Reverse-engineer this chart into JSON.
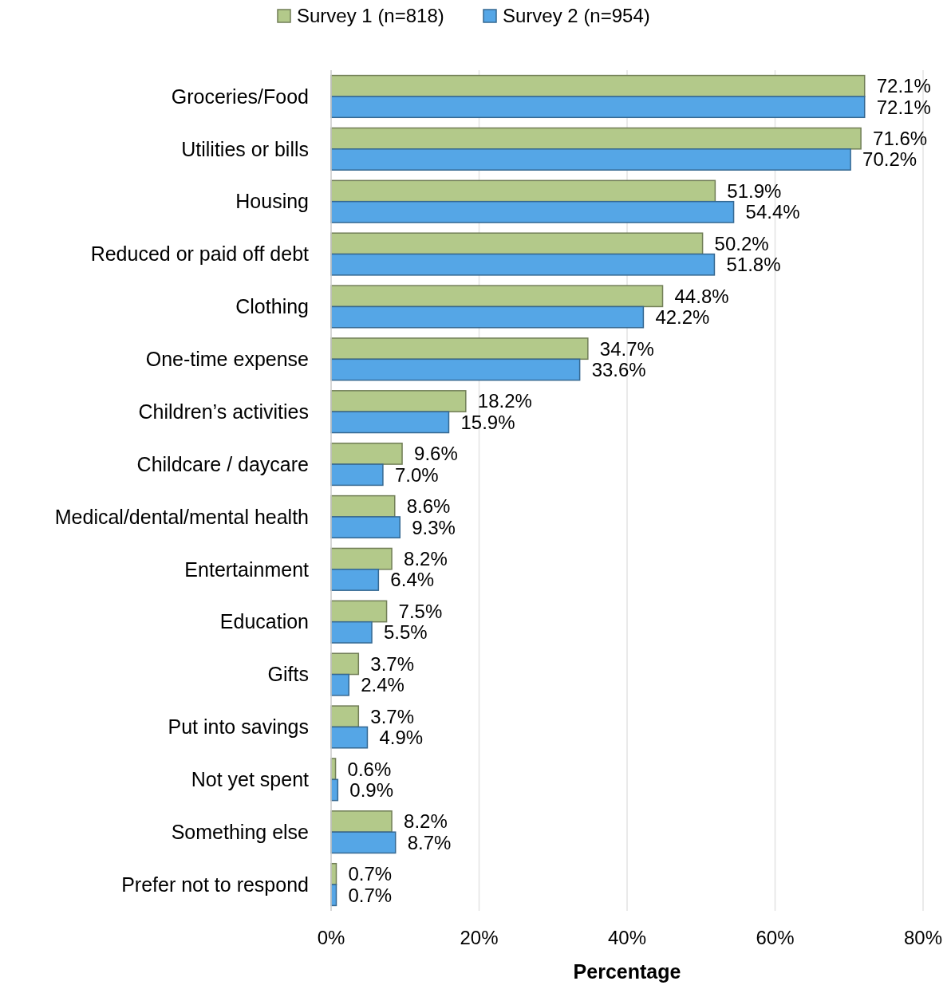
{
  "chart_data": {
    "type": "bar",
    "orientation": "horizontal",
    "xlabel": "Percentage",
    "categories": [
      "Groceries/Food",
      "Utilities or bills",
      "Housing",
      "Reduced or paid off debt",
      "Clothing",
      "One-time expense",
      "Children’s activities",
      "Childcare / daycare",
      "Medical/dental/mental health",
      "Entertainment",
      "Education",
      "Gifts",
      "Put into savings",
      "Not yet spent",
      "Something else",
      "Prefer not to respond"
    ],
    "series": [
      {
        "name": "Survey 1 (n=818)",
        "color": "#b3c98a",
        "values": [
          72.1,
          71.6,
          51.9,
          50.2,
          44.8,
          34.7,
          18.2,
          9.6,
          8.6,
          8.2,
          7.5,
          3.7,
          3.7,
          0.6,
          8.2,
          0.7
        ],
        "value_labels": [
          "72.1%",
          "71.6%",
          "51.9%",
          "50.2%",
          "44.8%",
          "34.7%",
          "18.2%",
          "9.6%",
          "8.6%",
          "8.2%",
          "7.5%",
          "3.7%",
          "3.7%",
          "0.6%",
          "8.2%",
          "0.7%"
        ]
      },
      {
        "name": "Survey 2 (n=954)",
        "color": "#55a6e6",
        "values": [
          72.1,
          70.2,
          54.4,
          51.8,
          42.2,
          33.6,
          15.9,
          7.0,
          9.3,
          6.4,
          5.5,
          2.4,
          4.9,
          0.9,
          8.7,
          0.7
        ],
        "value_labels": [
          "72.1%",
          "70.2%",
          "54.4%",
          "51.8%",
          "42.2%",
          "33.6%",
          "15.9%",
          "7.0%",
          "9.3%",
          "6.4%",
          "5.5%",
          "2.4%",
          "4.9%",
          "0.9%",
          "8.7%",
          "0.7%"
        ]
      }
    ],
    "xlim": [
      0,
      80
    ],
    "xticks": [
      {
        "value": 0,
        "label": "0%"
      },
      {
        "value": 20,
        "label": "20%"
      },
      {
        "value": 40,
        "label": "40%"
      },
      {
        "value": 60,
        "label": "60%"
      },
      {
        "value": 80,
        "label": "80%"
      }
    ],
    "grid": "x",
    "legend": "top"
  }
}
